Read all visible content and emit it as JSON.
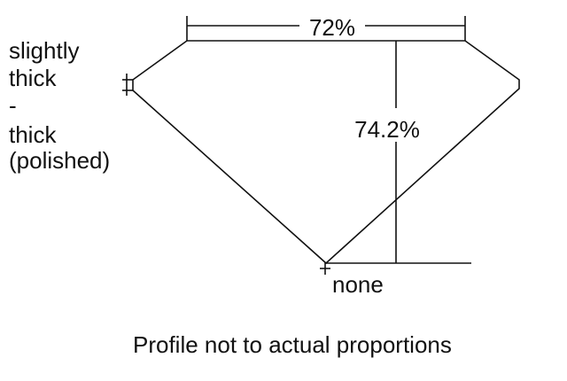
{
  "diagram": {
    "table_label": "72%",
    "depth_label": "74.2%",
    "girdle_label_lines": [
      "slightly",
      "thick",
      "-",
      "thick",
      "(polished)"
    ],
    "culet_label": "none",
    "caption": "Profile not to actual proportions",
    "line_color": "#111111",
    "background_color": "#ffffff"
  }
}
